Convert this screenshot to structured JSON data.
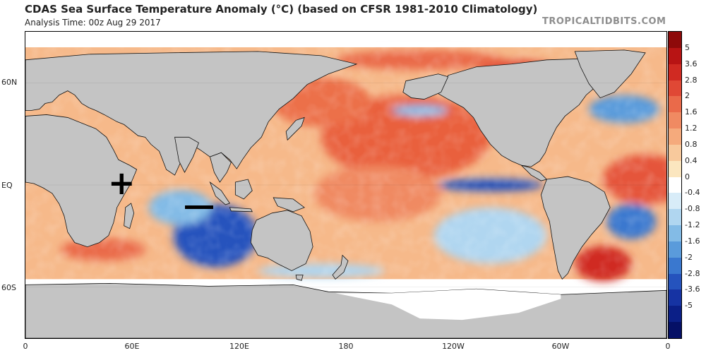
{
  "header": {
    "title": "CDAS Sea Surface Temperature Anomaly (°C) (based on CFSR 1981-2010 Climatology)",
    "subtitle": "Analysis Time: 00z Aug 29 2017",
    "credit": "TROPICALTIDBITS.COM"
  },
  "map": {
    "projection": "equirectangular",
    "lon_range": [
      0,
      360
    ],
    "lat_range": [
      -90,
      90
    ],
    "lat_labels": [
      "60N",
      "EQ",
      "60S"
    ],
    "lon_labels": [
      "0",
      "60E",
      "120E",
      "180",
      "120W",
      "60W",
      "0"
    ],
    "annotations": {
      "plus_symbol": "+",
      "minus_symbol": "—"
    }
  },
  "colorbar": {
    "labels": [
      "5",
      "3.6",
      "2.8",
      "2",
      "1.6",
      "1.2",
      "0.8",
      "0.4",
      "0",
      "-0.4",
      "-0.8",
      "-1.2",
      "-1.6",
      "-2",
      "-2.8",
      "-3.6",
      "-5"
    ],
    "colors": [
      "#8e0a0a",
      "#b81414",
      "#d02a22",
      "#e04835",
      "#ea6a4a",
      "#f08a62",
      "#f5aa7c",
      "#f8c99c",
      "#fbe6bf",
      "#ffffff",
      "#d8ecf8",
      "#b0d6f0",
      "#83bbe6",
      "#5a9bdb",
      "#3a78cf",
      "#2553bd",
      "#1633a3",
      "#0b1f87",
      "#051066"
    ],
    "land_color": "#c4c4c4",
    "ice_color": "#ffffff"
  }
}
